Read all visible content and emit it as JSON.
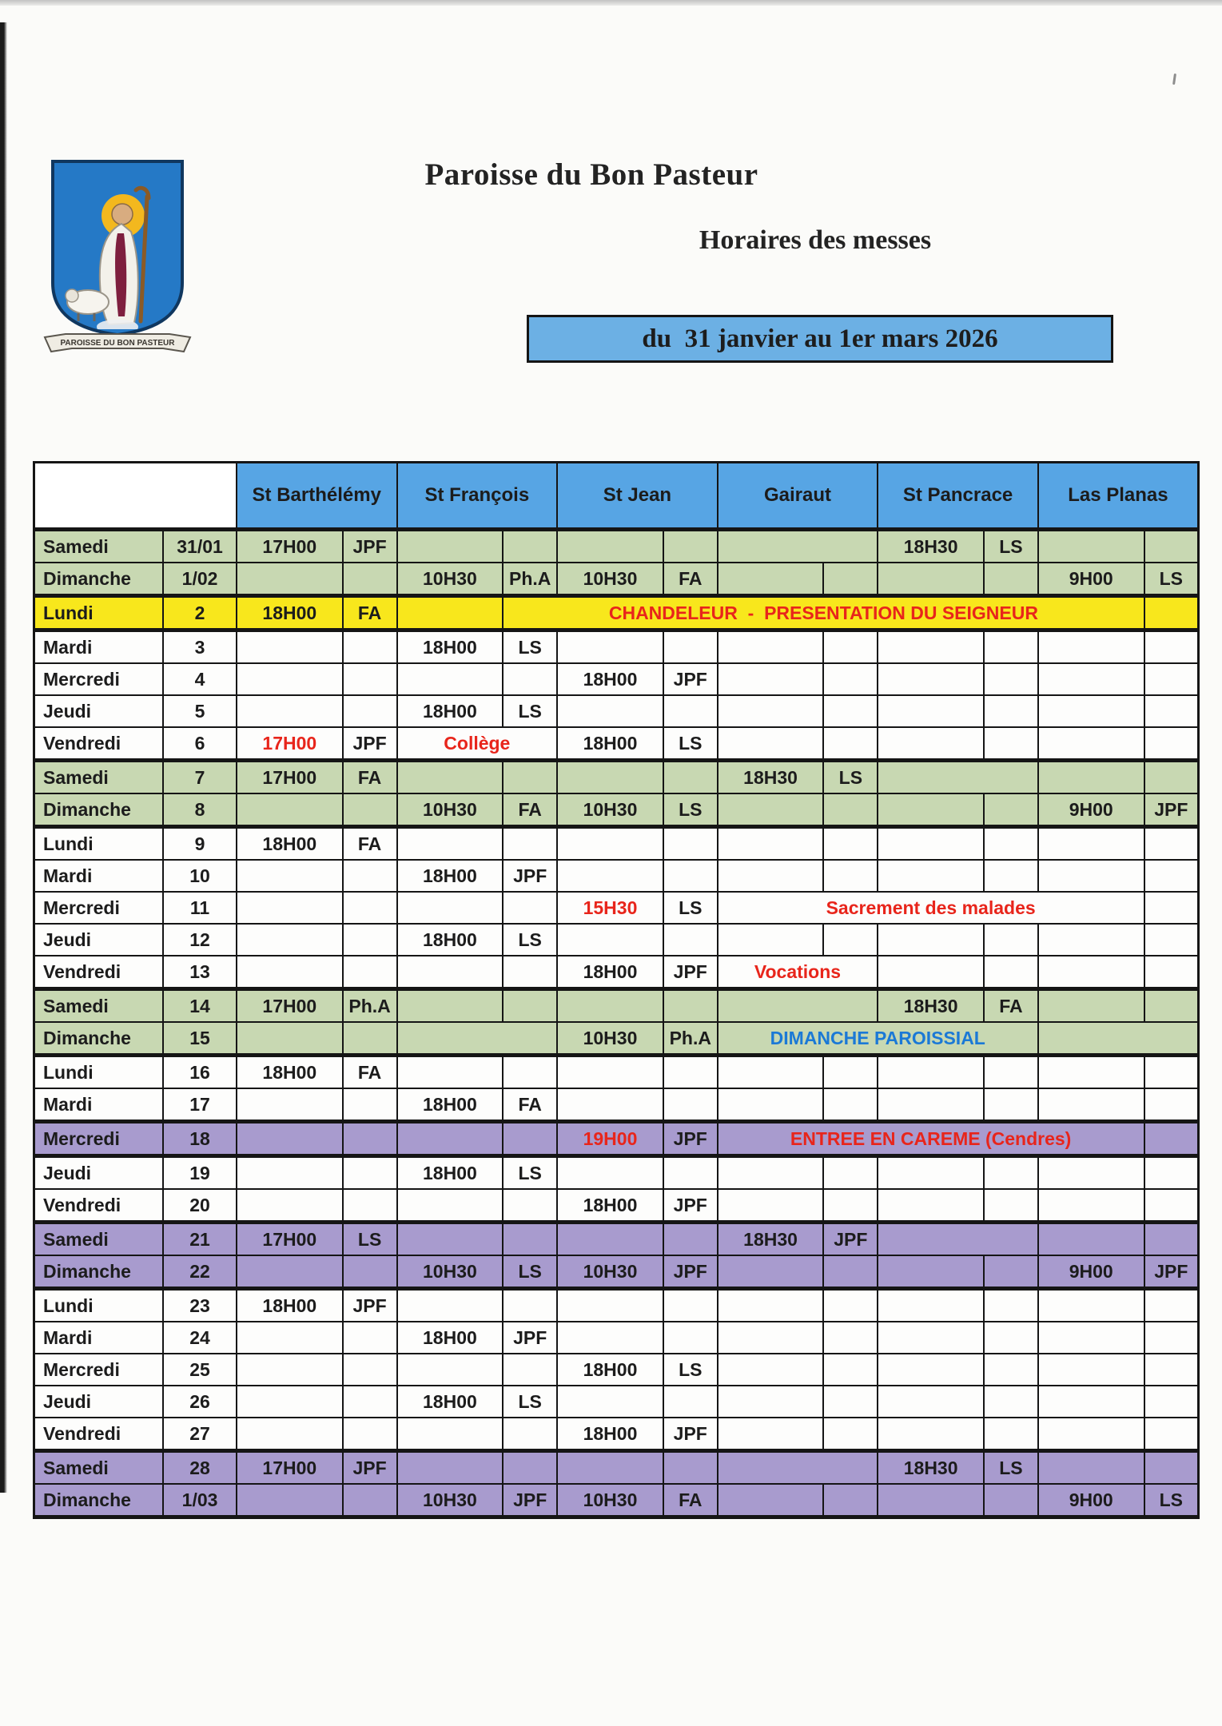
{
  "page": {
    "title": "Paroisse du Bon Pasteur",
    "subtitle": "Horaires des messes",
    "banner": "du  31 janvier au 1er mars 2026",
    "crest_caption": "PAROISSE DU BON PASTEUR"
  },
  "colors": {
    "header_blue": "#57a5e4",
    "banner_blue": "#6cb0e4",
    "weekend_green": "#c8d8b2",
    "feast_yellow": "#f8e71c",
    "lent_purple": "#a89bce",
    "note_red": "#e8251b",
    "note_blue": "#1b79d6"
  },
  "table": {
    "churches": [
      "St Barthélémy",
      "St François",
      "St Jean",
      "Gairaut",
      "St Pancrace",
      "Las Planas"
    ],
    "rows": [
      {
        "day": "Samedi",
        "date": "31/01",
        "style": "green",
        "bt": true,
        "cells": [
          {
            "i": 0,
            "t": "17H00"
          },
          {
            "i": 1,
            "t": "JPF"
          },
          {
            "i": 6,
            "s": 2,
            "k": "hatch"
          },
          {
            "i": 8,
            "t": "18H30"
          },
          {
            "i": 9,
            "t": "LS"
          }
        ]
      },
      {
        "day": "Dimanche",
        "date": "1/02",
        "style": "green",
        "bb": true,
        "cells": [
          {
            "i": 2,
            "t": "10H30"
          },
          {
            "i": 3,
            "t": "Ph.A"
          },
          {
            "i": 4,
            "t": "10H30"
          },
          {
            "i": 5,
            "t": "FA"
          },
          {
            "i": 10,
            "t": "9H00"
          },
          {
            "i": 11,
            "t": "LS"
          }
        ]
      },
      {
        "day": "Lundi",
        "date": "2",
        "style": "yellow",
        "bt": true,
        "bb": true,
        "cells": [
          {
            "i": 0,
            "t": "18H00"
          },
          {
            "i": 1,
            "t": "FA"
          },
          {
            "i": 3,
            "s": 8,
            "t": "CHANDELEUR  -  PRESENTATION DU SEIGNEUR",
            "k": "note-red"
          }
        ]
      },
      {
        "day": "Mardi",
        "date": "3",
        "style": "white",
        "cells": [
          {
            "i": 2,
            "t": "18H00"
          },
          {
            "i": 3,
            "t": "LS"
          }
        ]
      },
      {
        "day": "Mercredi",
        "date": "4",
        "style": "white",
        "cells": [
          {
            "i": 4,
            "t": "18H00"
          },
          {
            "i": 5,
            "t": "JPF"
          }
        ]
      },
      {
        "day": "Jeudi",
        "date": "5",
        "style": "white",
        "cells": [
          {
            "i": 2,
            "t": "18H00"
          },
          {
            "i": 3,
            "t": "LS"
          }
        ]
      },
      {
        "day": "Vendredi",
        "date": "6",
        "style": "white",
        "cells": [
          {
            "i": 0,
            "t": "17H00",
            "k": "red"
          },
          {
            "i": 1,
            "t": "JPF"
          },
          {
            "i": 2,
            "s": 2,
            "t": "Collège",
            "k": "note-red"
          },
          {
            "i": 4,
            "t": "18H00"
          },
          {
            "i": 5,
            "t": "LS"
          }
        ]
      },
      {
        "day": "Samedi",
        "date": "7",
        "style": "green",
        "bt": true,
        "cells": [
          {
            "i": 0,
            "t": "17H00"
          },
          {
            "i": 1,
            "t": "FA"
          },
          {
            "i": 6,
            "t": "18H30"
          },
          {
            "i": 7,
            "t": "LS"
          },
          {
            "i": 8,
            "s": 2,
            "k": "hatch"
          }
        ]
      },
      {
        "day": "Dimanche",
        "date": "8",
        "style": "green",
        "bb": true,
        "cells": [
          {
            "i": 2,
            "t": "10H30"
          },
          {
            "i": 3,
            "t": "FA"
          },
          {
            "i": 4,
            "t": "10H30"
          },
          {
            "i": 5,
            "t": "LS"
          },
          {
            "i": 10,
            "t": "9H00"
          },
          {
            "i": 11,
            "t": "JPF"
          }
        ]
      },
      {
        "day": "Lundi",
        "date": "9",
        "style": "white",
        "cells": [
          {
            "i": 0,
            "t": "18H00"
          },
          {
            "i": 1,
            "t": "FA"
          }
        ]
      },
      {
        "day": "Mardi",
        "date": "10",
        "style": "white",
        "cells": [
          {
            "i": 2,
            "t": "18H00"
          },
          {
            "i": 3,
            "t": "JPF"
          }
        ]
      },
      {
        "day": "Mercredi",
        "date": "11",
        "style": "white",
        "cells": [
          {
            "i": 4,
            "t": "15H30",
            "k": "red"
          },
          {
            "i": 5,
            "t": "LS"
          },
          {
            "i": 6,
            "s": 5,
            "t": "Sacrement des malades",
            "k": "note-red"
          }
        ]
      },
      {
        "day": "Jeudi",
        "date": "12",
        "style": "white",
        "cells": [
          {
            "i": 2,
            "t": "18H00"
          },
          {
            "i": 3,
            "t": "LS"
          }
        ]
      },
      {
        "day": "Vendredi",
        "date": "13",
        "style": "white",
        "cells": [
          {
            "i": 4,
            "t": "18H00"
          },
          {
            "i": 5,
            "t": "JPF"
          },
          {
            "i": 6,
            "s": 2,
            "t": "Vocations",
            "k": "note-red"
          }
        ]
      },
      {
        "day": "Samedi",
        "date": "14",
        "style": "green",
        "bt": true,
        "cells": [
          {
            "i": 0,
            "t": "17H00"
          },
          {
            "i": 1,
            "t": "Ph.A"
          },
          {
            "i": 6,
            "s": 2,
            "k": "hatch"
          },
          {
            "i": 8,
            "t": "18H30"
          },
          {
            "i": 9,
            "t": "FA"
          }
        ]
      },
      {
        "day": "Dimanche",
        "date": "15",
        "style": "green",
        "bb": true,
        "cells": [
          {
            "i": 2,
            "s": 2,
            "k": "hatch"
          },
          {
            "i": 4,
            "t": "10H30"
          },
          {
            "i": 5,
            "t": "Ph.A"
          },
          {
            "i": 6,
            "s": 4,
            "t": "DIMANCHE PAROISSIAL",
            "k": "note-blue"
          },
          {
            "i": 10,
            "s": 2,
            "k": "hatch"
          }
        ]
      },
      {
        "day": "Lundi",
        "date": "16",
        "style": "white",
        "cells": [
          {
            "i": 0,
            "t": "18H00"
          },
          {
            "i": 1,
            "t": "FA"
          }
        ]
      },
      {
        "day": "Mardi",
        "date": "17",
        "style": "white",
        "cells": [
          {
            "i": 2,
            "t": "18H00"
          },
          {
            "i": 3,
            "t": "FA"
          }
        ]
      },
      {
        "day": "Mercredi",
        "date": "18",
        "style": "purple",
        "bt": true,
        "bb": true,
        "cells": [
          {
            "i": 4,
            "t": "19H00",
            "k": "red"
          },
          {
            "i": 5,
            "t": "JPF"
          },
          {
            "i": 6,
            "s": 5,
            "t": "ENTREE EN CAREME (Cendres)",
            "k": "note-red"
          }
        ]
      },
      {
        "day": "Jeudi",
        "date": "19",
        "style": "white",
        "cells": [
          {
            "i": 2,
            "t": "18H00"
          },
          {
            "i": 3,
            "t": "LS"
          }
        ]
      },
      {
        "day": "Vendredi",
        "date": "20",
        "style": "white",
        "cells": [
          {
            "i": 4,
            "t": "18H00"
          },
          {
            "i": 5,
            "t": "JPF"
          }
        ]
      },
      {
        "day": "Samedi",
        "date": "21",
        "style": "purple",
        "bt": true,
        "cells": [
          {
            "i": 0,
            "t": "17H00"
          },
          {
            "i": 1,
            "t": "LS"
          },
          {
            "i": 6,
            "t": "18H30"
          },
          {
            "i": 7,
            "t": "JPF"
          },
          {
            "i": 8,
            "s": 2,
            "k": "hatch"
          }
        ]
      },
      {
        "day": "Dimanche",
        "date": "22",
        "style": "purple",
        "bb": true,
        "cells": [
          {
            "i": 2,
            "t": "10H30"
          },
          {
            "i": 3,
            "t": "LS"
          },
          {
            "i": 4,
            "t": "10H30"
          },
          {
            "i": 5,
            "t": "JPF"
          },
          {
            "i": 10,
            "t": "9H00"
          },
          {
            "i": 11,
            "t": "JPF"
          }
        ]
      },
      {
        "day": "Lundi",
        "date": "23",
        "style": "white",
        "cells": [
          {
            "i": 0,
            "t": "18H00"
          },
          {
            "i": 1,
            "t": "JPF"
          }
        ]
      },
      {
        "day": "Mardi",
        "date": "24",
        "style": "white",
        "cells": [
          {
            "i": 2,
            "t": "18H00"
          },
          {
            "i": 3,
            "t": "JPF"
          }
        ]
      },
      {
        "day": "Mercredi",
        "date": "25",
        "style": "white",
        "cells": [
          {
            "i": 4,
            "t": "18H00"
          },
          {
            "i": 5,
            "t": "LS"
          }
        ]
      },
      {
        "day": "Jeudi",
        "date": "26",
        "style": "white",
        "cells": [
          {
            "i": 2,
            "t": "18H00"
          },
          {
            "i": 3,
            "t": "LS"
          }
        ]
      },
      {
        "day": "Vendredi",
        "date": "27",
        "style": "white",
        "cells": [
          {
            "i": 4,
            "t": "18H00"
          },
          {
            "i": 5,
            "t": "JPF"
          }
        ]
      },
      {
        "day": "Samedi",
        "date": "28",
        "style": "purple",
        "bt": true,
        "cells": [
          {
            "i": 0,
            "t": "17H00"
          },
          {
            "i": 1,
            "t": "JPF"
          },
          {
            "i": 6,
            "s": 2,
            "k": "hatch"
          },
          {
            "i": 8,
            "t": "18H30"
          },
          {
            "i": 9,
            "t": "LS"
          }
        ]
      },
      {
        "day": "Dimanche",
        "date": "1/03",
        "style": "purple",
        "bb": true,
        "cells": [
          {
            "i": 2,
            "t": "10H30"
          },
          {
            "i": 3,
            "t": "JPF"
          },
          {
            "i": 4,
            "t": "10H30"
          },
          {
            "i": 5,
            "t": "FA"
          },
          {
            "i": 10,
            "t": "9H00"
          },
          {
            "i": 11,
            "t": "LS"
          }
        ]
      }
    ]
  }
}
